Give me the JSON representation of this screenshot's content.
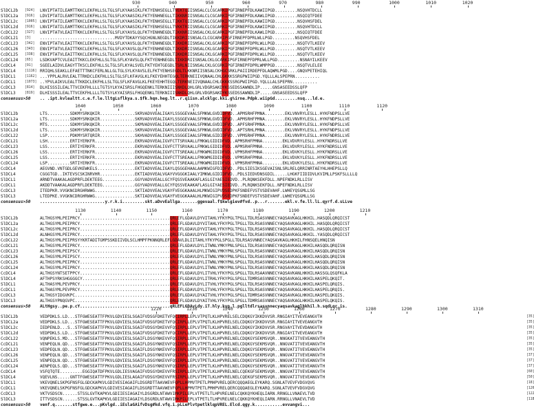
{
  "species": [
    "SlDCL2b",
    "SlDCL2a",
    "SlDCL2c",
    "SlDCL2d",
    "CcDCL22",
    "CcDCL21",
    "CcDCL23",
    "CcDCL26",
    "CcDCL25",
    "CcDCL24",
    "CcDCL4",
    "SlDCL4",
    "SlDCL1",
    "CcDCL1",
    "CcDCL3",
    "SlDCL3"
  ],
  "consensus_label": "consensus>50",
  "blocks": [
    {
      "ticks": [
        "930",
        "940",
        "950",
        "960",
        "970",
        "980",
        "990",
        "1000",
        "1010",
        "1020"
      ],
      "start_index": [
        "[924]",
        "[916]",
        "[1005]",
        "[916]",
        "[327]",
        "[3]",
        "[342]",
        "[343]",
        "[338]",
        "[65]",
        "[91]",
        "[1116]",
        "[1162]",
        "[1073]",
        "[814]",
        "[819]"
      ],
      "sequences": [
        "LNVIPTATILEAMTTKKCLEKFHLLSLTGLSFLKYAASIKLFKTYENHSEGLLTVEKTQIISNSALCLCGCARKIPGFIRNEPFDLKAWIIPGD.........NSQVHTDCLL",
        "LDVIPTATILEAMTTKKCLEKFHLLSLTGLSFLKYAASIKLFKTYENHNEGLLTIKKNRIISNSALCLCGCARKIPGFIRNEPFDLKAWLIPGD.........NSQIQTFDEE",
        "LNVIPTATILEAMTTKKCLEKFHLLSLTGLSFLKYAASIKLFKTYENHSEGLLTIKKTQIISNSALCLCGCARKIPGFIRNEPFDLKAWIIPGD.........NSQVHSFDEL",
        "LNVIPTATILEAMTTKKCLEKFHLLSLTGLSFLKYAASIKLFKTYENHSEGLLTVKKTRIISNSALCLCGCARKIPGFIRNEPFDLKAWIIPGD.........NSQVHTDCLL",
        "LNVIPTATVLEAITTKKCLEKFHLLSLTGLSFLKYAVSLQLFKTYENHNEGDLTIKKNRIISNSALCKLGCARKIPGFIRNEPFDLKAWLIPGD.........NSQIQTFDEE",
        "..............................MVDYTDKAYYSQCHGNLNEGDLTIKKDRIISNSALCLCGCARKIPGFIRNEPFDPRLWLLPGD.........NSQVHSFDEL",
        "ENVIPTATVLEAITTKKCLEKFHLLSLTGLSFLKYAVSLQLFKTYENHNEGDLTIKKDRIISNSALCKLGCARKIPGFIRNEPFDPRLWLLPGD.........NSQTVTLKEEV",
        "ENVIPTATVLEAITTKKCLEKFHLLSLTGLSFLKYAVSLQLFKTYENHNEGDLTIKKDRIISNSALCKLGCARKIPGFIRNEPFDPRLWLLPGD.........NSQTVTLKEEV",
        "ENVIPTATVLEAITTKKCLEKFHLLSLTGLSFLKYAVSLQLFKTYENHNEGDLTIKKDRIISNSALCKLGCARKIPGFIRNEPFDPRLWLLPGD.........NSQTVTLKEEV",
        "LSDKVAPTCVLEAITTKKCLEKFHLLSLTGLSFLKYAVSLQLFKTYENHNEGDLTIKKDRIISNSALCKLGCARKIPGFIRNEPFDPRLWLLPGD.........NSNAYILKEEV",
        "SGEELAIDVLEAGYTTKSCLEKFHLLSLTGLSFLKYALSVELFKTYEHTGEGDLTSRLNIISNSALCKLGCGRKIPGFIRNEPFDPRLWMPPGD.........NSQTVLELEE",
        "RRIQHLSEAKLLEFAETTTNKCFERLNLLGLTGLSYLKYAVSLELFKTYENHSEGDLTLKKNRIISNSALCKHGCSRKLPAIIIRDEPFDLAQWMLPGD....GNQVPETEHIQL",
        "...YPPLALRVLEALTTRKDCLEKFHLLSLTGLSFLKFAVGLKLFKEYEHHTEGQLTERKNEIIVQNAALCHLGKKKSSRGPWIIPGD.YQLLLALSPEPRN..........",
        "..YPVLAIKVLEALTTKKDCLEKFHLLSLTGLSFLKFAVGLKLFKEYEHHTEGQLTERKNEIIVQNAALCHLGKKKSSRGPWIIPGD.YQLLLALSPEPRN..........",
        "DLHISSSILEALTTVCEKFHLLLLTGTSYLKYAISRSLFHGQENKLTERKNIIISNKDLQHLGRLVDGRSAKDYKSSEDSSAWNDLIP.....GNSASEEDSSLQFP",
        "DLHISSSILEALTTVCEKFHLLLLTGTSYLKYAISRSLFHGQENKLTERKNIIISNKDLQHLGRLVDGRSAKDYKSSEDSSAWNDLIP.....GNSASEEDSSLQFP"
      ],
      "consensus": ".. .ipt.kvlealtt.c.e.f.le.lltgLsflkya.s.$fk.hqn.heg.lt..r.qiisn.alcklgc.kki.g%irne.Pdpk.wiipGd.........nsq...ld.e."
    },
    {
      "ticks": [
        "1040",
        "1050",
        "1060",
        "1070",
        "1080",
        "1090",
        "1100",
        "1110",
        "1120"
      ],
      "sequences": [
        "LTS.........SDKMYSRKQKIR..............SKRVADVVEALIGAYLSSGGEVAALSFMKWLGVDIDFVD..APMSRHFPMNA........EKLVNVRYLESLL.HYKFNDPSLLVE",
        "LTS.........SDKMYSRKQKIR..............SKRVADVVEALIGAYLSSGGEVAALSFMKWLGVDIDFVD..APMSRHFPMNA........EKLVNVRYLESLL.HYKFNDPSLLVE",
        "MTS.........SDKMYSRKQKIR..............SKMVADVVEALIGAYLSSGGEVAALSFMKWLGVDIDFVD..APFSRHFPMNA........EKLVNVRYLESLL.HYKFNDPSLLVE",
        "LTS.........SDKMYSRKQKIR..............SKRVADVVEALIGAYLSSGGEVAALSFMKWLGVDIDFVD..APTSRHLPMNA........EKLVNVRYLESLL.HYKFNDPSLLVE",
        "LSP.........PDKMYSRTQRIR..............SKHVADVVEALIGAYLSSGGEIAALSFMKWLGIDIDFVD..VPMSRHFPMNA........EKLVNVRYLESLL.HYKFNDRSLLVE",
        "LSH.........ERTIYERKFR................EKRVADVVEALIGVFCTTSRVAALLFMKWLGIDIDFVD..APMSRHFPMNA........EKLVDVRYLESLL.HYKFNDRSLLVE",
        "LSS.........ERTIYERKFR................EKRVADVVEALIGVFCTTSRVAALLFMKWLGIDIDFVD..APMSRHFPMNA........EKLVDVRYLESLL.HYKFNDRSLLVE",
        "LSS.........ERTIYERKFR................EKRVADVVEALIGVFCTTSREAALLFMKWMGIDIDFVD..VPMSRHFPMNA........EKLVDVKYLESLL.HYKFNDRSLLVE",
        "LSS.........ERTIYERKFR................EKRVADVVEALIGVFCTTSREAALLFMKWMGIDIDFVD..VPMSRHFPMNA........EKLVDVKYLESLL.HYKFNDRSLLVE",
        "LSP.........SRTIYERKFR................EKRVADVVEALIGVFCTTSREAALLFMKWMGIDIDFVD..VPMSRHFPMNA........EKLVDVKYLESLL.HYKFNDRSLLVE",
        "AEGVND.VNTGDLGEVKEWKELS...............EKTIADVVEALIGAYLQSGGEHAALAAMKWIGFDIDFVD..PDLSIESIKSGEVAISNLSRLRELQRRINRTAEYHLHHEPSLLQ",
        "CGGGTGD..IKTEVSCSKINRVHR..............EKTIADVVEALVGAYVVGGGKIAALYIMKWLGIDIDFVD..PDLSIEDVDNSGDIL.....LHGKFIIDIDVLKVIMLLPSKFSLLLLQ",
        "ARNDTVAAKALAGDPRFLDEKTEEG.............GGYVADVVEALLGCYFQSSVEAAKAFLASLGIYAESIEDVD..PLRQNKSEKFDLL.NPEFNDKLRLLISV",
        "AKDDTVAAKALAGDPRFLDEKTEEG.............GGYVADVVEALLGCYFQSSVEAAKAFLASLGIYAESIEDVD..PLRQNKSEKFDLL.NPEFNDKLRLLISV",
        "ITEDPKR.VVGKNCDRGHRWWG................SKTIADVVEALVGAYFVEGGKAAALHLMKWIGIPVDSEDPKFSNDEFVSTVSDEVAHF.LWHEYQSGMLLSG",
        "LTEDPKE.VVGKNCDRGHRWWG................SKTIADVVEALVGAYFVEGGKAAALHLMKWIGIPVDSEDPKFSNDEFVSTVSDEVAHF.LWHEYQSGMLLSG"
      ],
      "consensus": "..........................y.r.k.i.........skt.aDvvEallga.......ggevaal.f$kwlgiev#fvd..p...r.......ekl.v.fe.ll.lL.qyrf.d.sLLve"
    },
    {
      "ticks": [
        "1130",
        "1140",
        "1150",
        "1160",
        "1170",
        "1180",
        "1190",
        "1200",
        "1210"
      ],
      "sequences": [
        "ALTHGSYMLPEIPRCY....................................QRLEFLGDAVLDYVITAHLYFKYPGLTPGLLTDLRSASVNNECYAQSAVKAGLHKHIL.HASQDLQRQICST",
        "ALTHGSYMLPEIPRCY....................................QRLEFLGDAVLDYVITAHLYFKYPGLTPGLLTDLRSASVNNECYAQSAVKAGLHKHIL.HASQDLQRQICST",
        "ALTHGSYMLPEIPRCY....................................QRLEFLGDAVLDYVITAHLYFKYPGLTPGLLTDLRSASVNNECYAQSAVKAGLHKHIL.HASQDLQRQICST",
        "ALNHGSYMLPEIPRCY....................................QRLEFLGDAVLDYVITAHLYFKYPGLTPGLLTDLRSASVNNECYAQSAVKAGLHKHIL.YASQDLQRQICST",
        "ALTHGSYMLPEIPRSYYKRTADITGMPSSKDIIVDLSCLHMPFPKNNQRLEFLGDAVLDLIITAHLYFKYPGLSPGLLTDLRSASVNNECYAQSAVKAGLHKHILFHNSQELHNQISN",
        "ALTHGSYMLPEIPRCY....................................QRLEFLGDAVLDYLITWNLYMKYPNLSPGLLTDLRSASVNNECYAQSAVKAGLHKHILHASQDLQRQISN",
        "ALTHGSYMLPEIPSCY....................................QRLEFLGDAVLDYLITWNLYMKYPNLSPGLLTDLRSASVNNECYAQSAVKAGLHKHILHASQDLQRQISN",
        "ALTHGSYMLPEIPSCY....................................QRLEFLGDAVLDYLITWNLYMKYPNLSPGLLTDLRSASVNNECYAQSAVKAGLHKHILHASQDLQRQISN",
        "ALTHGSYMLPEIPRCY....................................QRLEFLGDAVLDYLITWNLYMKYPNLSPGLLTDLRSASVNNECYAQSAVKAGLHKHILHASQDLQRQISN",
        "ALTHGSYMLPEIPRCY....................................QRLEFLGDAVLDYLITWNLYMKYPNLSPGLLTDLRSASVNNECYAQSAVKAGLHKHILHASQDLQRQISN",
        "ALTHGSYNTSETPPCY....................................QRLEFLGDAVLDYLITVHLYFKYPGLSPGLLTDLRSAAVNNECYAQSAVKANLHKHILHASSGLQSQFKLA",
        "AFTHPSYRKSHGGGGCY...................................QRLEFLGDAVLDYLITRHLYFKYPGLSPGLLTDMRSASVNNECYAQSAVKAGLHKHILHASPELQKQIT.",
        "ALTHASYMLPEVPRCY....................................QRLEFLGDAVLDYLITVHLYFKYPGLSPGLLTDLRSASVNNECYAQSAVKAGLHKHILHASPELQRQIS.",
        "ALTHASYMLPEVPRCY....................................QRLEFLGDAVLDYLITVHLYFKYPGLSPGLLTDLRSASVNNECYAQSAVKAGLHKHILHASPELQRQIS.",
        "ALTHGSYIDGVKPC......................................QRLEFLGDAVLDYAITVHLYFKYPGLSPGLLTDMRSASVNNECYAQSAVKAGLHKHILHASPELQKQIS.",
        "ALTHGSYPNQGVPC......................................QRLEFLGDAVLDYAITVHLYFKYPGLSPGLLTDMRSASVNNECYAQSAVKAGLHKHILHASPELQKQIS."
      ],
      "consensus": "ALtHgsy..pe.p.cY....................................qRLEFLGDAvLdy.iT.hly.kyp.l.pglltdlrsasvnnecyaqsavkaglhkhil.h.sqdLqr.is."
    },
    {
      "ticks": [
        "1220",
        "1230",
        "1240",
        "1250",
        "1260",
        "1270",
        "1280",
        "1290",
        "1300",
        "1310"
      ],
      "end_index": [
        "[35]",
        "[35]",
        "[35]",
        "[35]",
        "[35]",
        "[35]",
        "[35]",
        "[37]",
        "[37]",
        "[37]",
        "[60]",
        "[50]",
        "[18]",
        "[126]",
        "[122]",
        "[118]"
      ],
      "sequences": [
        "VEDPDKLS.LD...STFGWESEATTFPKVLGDVIESLSGAIFVDSGFDKETVFQCIRPLLEPLVTPQTLKLHPVRELSELCDQKGYIKKDVVSR.RNGIAYITVEVEANGVTH",
        "VEDPDKLS.LD...STFGWESEATTFPKVLGDVIESLSGAIFVDSGFDKETVFQCIRPLLEPLVTPQTLKLHPVRELSELCDQKGYIKKDVVSR.RNGIAYITVEVEANGVTH",
        "IEDPENLD...S..STFGWESEATTFPKVLGDVIESLSGAIFVDSGYDKEVVFQSIRPLLEPLVTPETLKLHPVRELNELCDQKGYIKKDVVSR.RNGVAYITVEVDANGVTH",
        "VEDPDKLS.LD...STFGWESEATTFPKVLGDVIESLSGAIFVDSGFDKETVFQCIRPLLEPLVTPQTLKLHPVRELSELCDQKGYIKKDVVSR.RNGIAYITVEVEANGVTH",
        "VQNPEKLS.MD...STFGWESEATTFPKVLGDVIESLSGAIFLDSGYNKEVVFQSIRPLLEPLVTPETLKLHPVRELNELCDQKGYSEKMSVQR..NNGKATITVEVEANGVTH",
        "VENPEQLN.QD...STFGWESEATTFPKVLGDVIESLSGAIFLDSGYNKEVVFQSIRPLLEPLVTPETLKLHPVRELNELCDQKGYSEKMSVQR..NNGVATITVEVEANGVTH",
        "VEDPEQLN.QD...STFGWESEATTFPKVLGDVIESLSGAIFLDSGYNKEVVFQSIRPLLEPLVTPETLKLHPVRELNELCDQKGYSEKMSVQR..NNGVATITVEVEANGVTH",
        "VENPEQLN.QD...STFGWESEATTFPKVLGDVIESLSGAIFLDSGYNKEVVFQSIRPLLEPLVTPETLKLHPVRELNELCDQKGYSEKMSVQR..NNGVATITVEVEANGVTH",
        "VENPEQLN.QD...STFGWESEATTFPKVLGDVIESLSGAIFLDSGYNKEVVFQSIRPLLEPLVTPETLKLHPVRELNELCDQKGYSEKMSVQR..NNGVATITVEVEANGVTH",
        "AENPEQLS.QD...STFGWESEATTFPKVLGDVIESLSGAIFLDSGYNKEVVFQSIRPLLEPLVTPETLKLHPVRELNELCDQKGYSEKMSVQR..NNGVATITVEVEANGVTH",
        "VSFQTQTE.........EGGIQATDFPKVLGDLIESVAGAIFVDSGYDKEVVFRSIRPLLEPLVTPETLKLHPVRELNELCQEKGFSEKMSVQR..NNGVATITVEVEANGVTH",
        "VQEVLNS.....GNTTFGWESEATTFPKVLGDLIESLAGAIFVDSGYDKEVVFRSIRPLLEPLVTPETLKLHPVRELNELCQEKGFSEKMSVQR..NNGVATITVEVEANGVTH",
        "VKEVQNELSKPGFNSFGLGDCKAPKVLGDIVESIAGAIFLDSGRDTTAAVWEVFQPLLHPMVTPETLPMHPVRELQERCQQQAEGLEYKARQ.SGNLATVEVFVDGVQVG",
        "VKEVQNELSKPGFNSFGLGDCKAPKVLGDIVESIAGAIFLDSGRDTTAAVWEVFQPLLHPMVTPETLPMHPVRELQERCQQQAEGLEYKARQ.SGNLATVEVFVDGVQVG",
        "VKTVSDSCN......STSSLGVTKAPKVLGDIIESIAGAIYLDSGRDLNTAWVIMKPILEPLVTPETLTLHPVRELNELCQKKQYKHEQLIARN.RRNGLLVNAEVLTVD",
        "ITTVSDSCN......STSSLGVTKAPKVLGDIIESIAGAIYLDSGRDLNTAWVIMKPILEPLVTPETLTLHPVRELNELCQKKQYKHEQLIARN.RRNGLLVNAEVLTVD"
      ],
      "consensus": "venf.q.......stfgwe.e...pKvlgd..iEslaGAifvDsg#kd.vfq.i.pLLePlvtpetlklqpVREL.Elcd.qgy.k...........evvangvi..."
    }
  ]
}
